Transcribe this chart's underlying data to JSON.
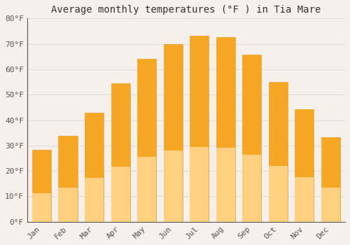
{
  "months": [
    "Jan",
    "Feb",
    "Mar",
    "Apr",
    "May",
    "Jun",
    "Jul",
    "Aug",
    "Sep",
    "Oct",
    "Nov",
    "Dec"
  ],
  "values": [
    28.4,
    33.8,
    43.0,
    54.5,
    64.0,
    70.0,
    73.2,
    72.7,
    65.8,
    55.0,
    44.2,
    33.3
  ],
  "bar_color_top": "#F5A623",
  "bar_color_bottom": "#FFD080",
  "bar_edge_color": "#E8960A",
  "title": "Average monthly temperatures (°F ) in Tia Mare",
  "ylim": [
    0,
    80
  ],
  "yticks": [
    0,
    10,
    20,
    30,
    40,
    50,
    60,
    70,
    80
  ],
  "background_color": "#F5F0EB",
  "plot_bg_color": "#F5F0EB",
  "grid_color": "#DDDDDD",
  "title_fontsize": 10,
  "tick_fontsize": 8,
  "axis_color": "#555555"
}
